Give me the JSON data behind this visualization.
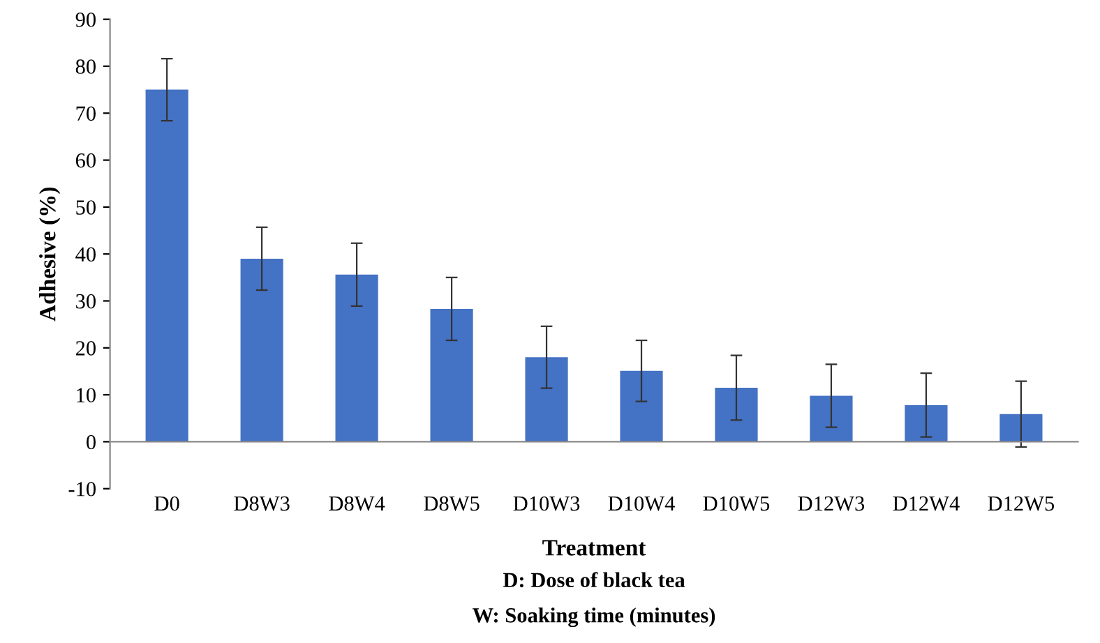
{
  "chart_data": {
    "type": "bar",
    "xlabel": "Treatment",
    "ylabel": "Adhesive (%)",
    "categories": [
      "D0",
      "D8W3",
      "D8W4",
      "D8W5",
      "D10W3",
      "D10W4",
      "D10W5",
      "D12W3",
      "D12W4",
      "D12W5"
    ],
    "values": [
      75,
      39,
      35.6,
      28.3,
      18,
      15.1,
      11.5,
      9.8,
      7.8,
      5.9
    ],
    "errors": [
      6.6,
      6.7,
      6.7,
      6.7,
      6.6,
      6.5,
      6.9,
      6.7,
      6.8,
      7
    ],
    "color": "#4472c4",
    "ylim": [
      -10,
      90
    ],
    "yticks": [
      -10,
      0,
      10,
      20,
      30,
      40,
      50,
      60,
      70,
      80,
      90
    ],
    "grid": false,
    "annotations": [
      "D: Dose of black tea",
      "W: Soaking time (minutes)"
    ]
  }
}
